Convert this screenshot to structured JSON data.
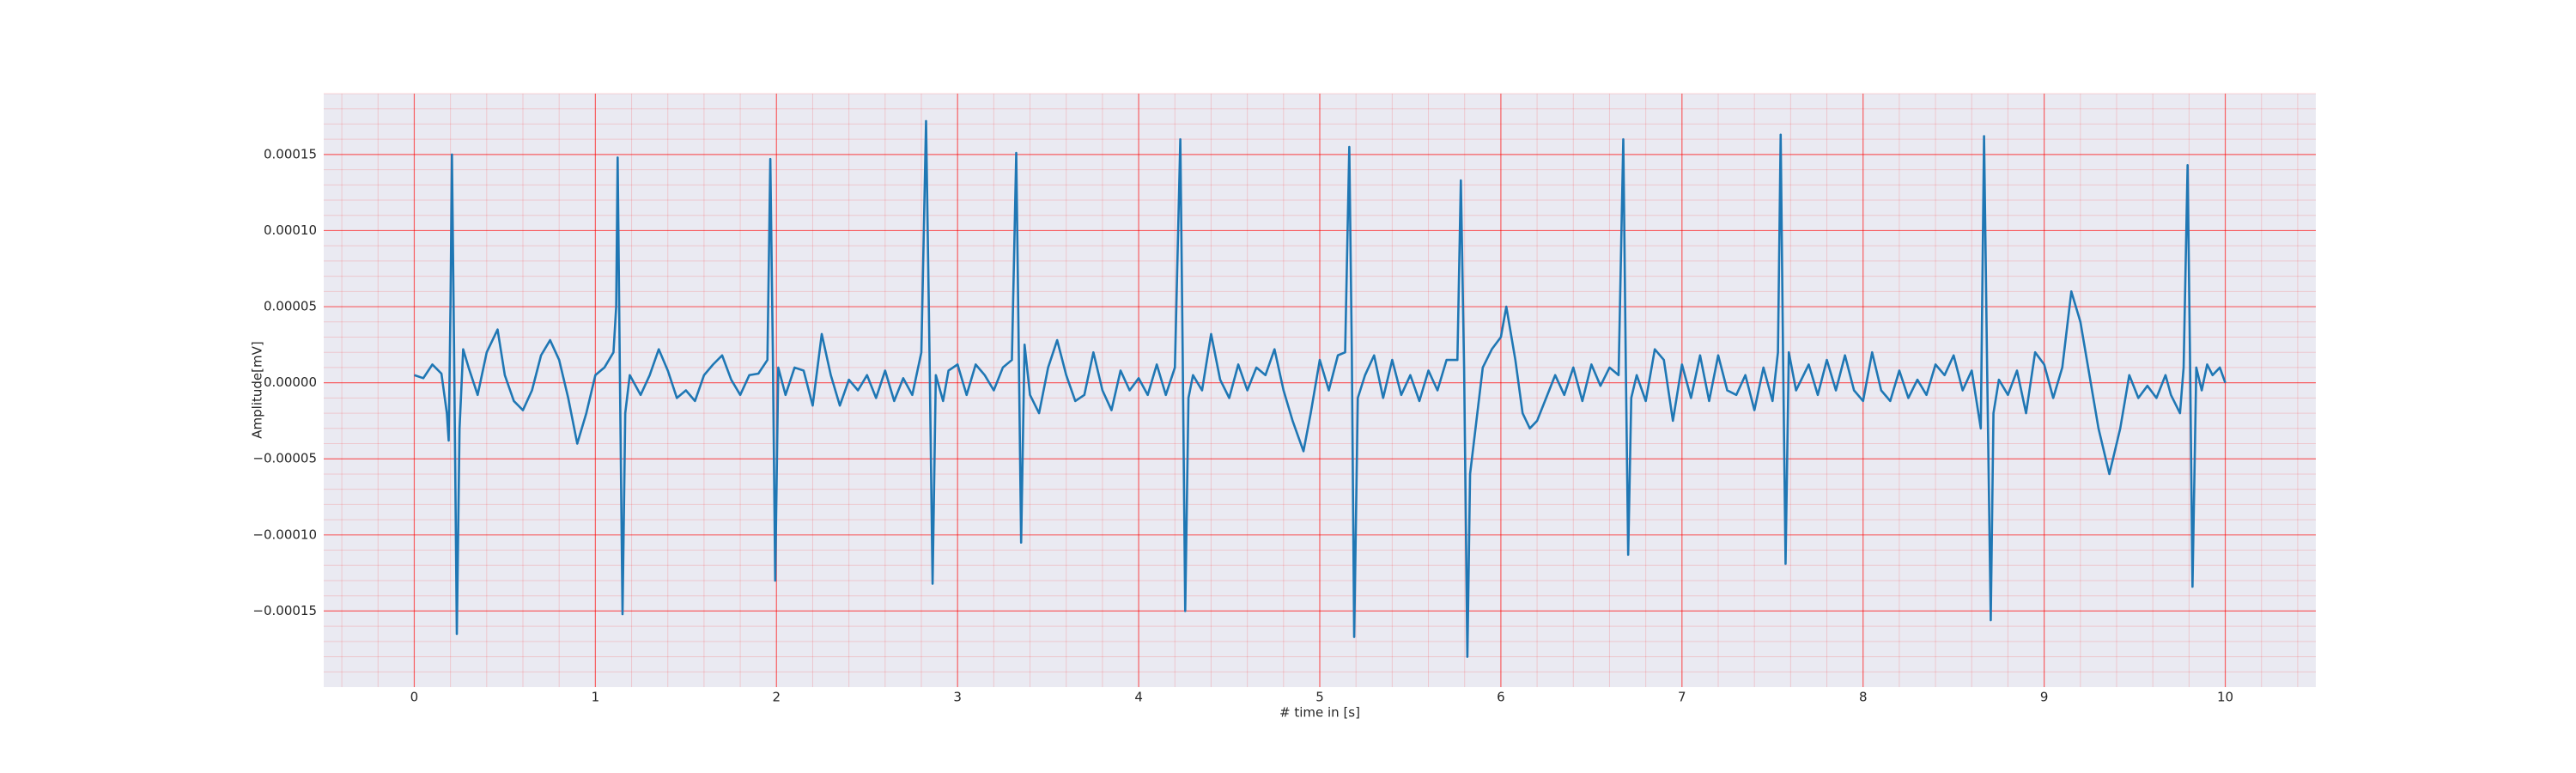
{
  "chart_data": {
    "type": "line",
    "x_label": "# time in [s]",
    "y_label": "Amplitude[mV]",
    "color": "#1f77b4",
    "background": "#eaeaf2",
    "grid": true,
    "grid_color": "#ff0000",
    "minor_grid": true,
    "xlim": [
      -0.5,
      10.5
    ],
    "ylim": [
      -0.0002,
      0.00019
    ],
    "xticks": [
      0,
      1,
      2,
      3,
      4,
      5,
      6,
      7,
      8,
      9,
      10
    ],
    "yticks": [
      {
        "value": -0.00015,
        "label": "−0.00015"
      },
      {
        "value": -0.0001,
        "label": "−0.00010"
      },
      {
        "value": -5e-05,
        "label": "−0.00005"
      },
      {
        "value": 0,
        "label": "0.00000"
      },
      {
        "value": 5e-05,
        "label": "0.00005"
      },
      {
        "value": 0.0001,
        "label": "0.00010"
      },
      {
        "value": 0.00015,
        "label": "0.00015"
      }
    ],
    "x": [
      0,
      0.05,
      0.1,
      0.15,
      0.18,
      0.19,
      0.2,
      0.208,
      0.22,
      0.235,
      0.25,
      0.27,
      0.3,
      0.35,
      0.4,
      0.46,
      0.5,
      0.55,
      0.6,
      0.65,
      0.7,
      0.75,
      0.8,
      0.85,
      0.9,
      0.95,
      1.0,
      1.05,
      1.1,
      1.115,
      1.123,
      1.135,
      1.15,
      1.165,
      1.19,
      1.25,
      1.3,
      1.35,
      1.4,
      1.45,
      1.5,
      1.55,
      1.6,
      1.65,
      1.7,
      1.75,
      1.8,
      1.85,
      1.9,
      1.95,
      1.966,
      1.98,
      1.993,
      2.01,
      2.05,
      2.1,
      2.15,
      2.2,
      2.25,
      2.3,
      2.35,
      2.4,
      2.45,
      2.5,
      2.55,
      2.6,
      2.65,
      2.7,
      2.75,
      2.8,
      2.826,
      2.845,
      2.862,
      2.88,
      2.92,
      2.95,
      3.0,
      3.05,
      3.1,
      3.15,
      3.2,
      3.25,
      3.3,
      3.324,
      3.338,
      3.351,
      3.37,
      3.4,
      3.45,
      3.5,
      3.55,
      3.6,
      3.65,
      3.7,
      3.75,
      3.8,
      3.85,
      3.9,
      3.95,
      4.0,
      4.05,
      4.1,
      4.15,
      4.2,
      4.23,
      4.243,
      4.257,
      4.275,
      4.3,
      4.35,
      4.4,
      4.45,
      4.5,
      4.55,
      4.6,
      4.65,
      4.7,
      4.75,
      4.8,
      4.85,
      4.91,
      4.95,
      5.0,
      5.05,
      5.1,
      5.14,
      5.163,
      5.177,
      5.19,
      5.21,
      5.25,
      5.3,
      5.35,
      5.4,
      5.45,
      5.5,
      5.55,
      5.6,
      5.65,
      5.7,
      5.76,
      5.779,
      5.797,
      5.815,
      5.83,
      5.85,
      5.9,
      5.95,
      6.0,
      6.03,
      6.08,
      6.12,
      6.16,
      6.2,
      6.25,
      6.3,
      6.35,
      6.4,
      6.45,
      6.5,
      6.55,
      6.6,
      6.65,
      6.676,
      6.69,
      6.703,
      6.72,
      6.75,
      6.8,
      6.85,
      6.9,
      6.95,
      7.0,
      7.05,
      7.1,
      7.15,
      7.2,
      7.25,
      7.3,
      7.35,
      7.4,
      7.45,
      7.5,
      7.53,
      7.545,
      7.558,
      7.572,
      7.59,
      7.63,
      7.7,
      7.75,
      7.8,
      7.85,
      7.9,
      7.95,
      8.0,
      8.05,
      8.1,
      8.15,
      8.2,
      8.25,
      8.3,
      8.35,
      8.4,
      8.45,
      8.5,
      8.55,
      8.6,
      8.65,
      8.668,
      8.685,
      8.705,
      8.72,
      8.75,
      8.8,
      8.85,
      8.9,
      8.95,
      9.0,
      9.05,
      9.1,
      9.15,
      9.2,
      9.25,
      9.3,
      9.36,
      9.42,
      9.47,
      9.52,
      9.57,
      9.62,
      9.67,
      9.7,
      9.75,
      9.77,
      9.792,
      9.806,
      9.819,
      9.84,
      9.87,
      9.9,
      9.93,
      9.97,
      10.0
    ],
    "values": [
      5e-06,
      3e-06,
      1.2e-05,
      6e-06,
      -2e-05,
      -3.8e-05,
      5e-05,
      0.00015,
      2e-05,
      -0.000165,
      -3e-05,
      2.2e-05,
      1e-05,
      -8e-06,
      2e-05,
      3.5e-05,
      5e-06,
      -1.2e-05,
      -1.8e-05,
      -5e-06,
      1.8e-05,
      2.8e-05,
      1.5e-05,
      -1e-05,
      -4e-05,
      -2e-05,
      5e-06,
      1e-05,
      2e-05,
      5e-05,
      0.000148,
      1e-05,
      -0.000152,
      -2e-05,
      5e-06,
      -8e-06,
      5e-06,
      2.2e-05,
      8e-06,
      -1e-05,
      -5e-06,
      -1.2e-05,
      5e-06,
      1.2e-05,
      1.8e-05,
      2e-06,
      -8e-06,
      5e-06,
      6e-06,
      1.5e-05,
      0.000147,
      2e-05,
      -0.00013,
      1e-05,
      -8e-06,
      1e-05,
      8e-06,
      -1.5e-05,
      3.2e-05,
      5e-06,
      -1.5e-05,
      2e-06,
      -5e-06,
      5e-06,
      -1e-05,
      8e-06,
      -1.2e-05,
      3e-06,
      -8e-06,
      2e-05,
      0.000172,
      2e-05,
      -0.000132,
      5e-06,
      -1.2e-05,
      8e-06,
      1.2e-05,
      -8e-06,
      1.2e-05,
      5e-06,
      -5e-06,
      1e-05,
      1.5e-05,
      0.000151,
      2e-05,
      -0.000105,
      2.5e-05,
      -8e-06,
      -2e-05,
      1e-05,
      2.8e-05,
      5e-06,
      -1.2e-05,
      -8e-06,
      2e-05,
      -5e-06,
      -1.8e-05,
      8e-06,
      -5e-06,
      3e-06,
      -8e-06,
      1.2e-05,
      -8e-06,
      1e-05,
      0.00016,
      2e-05,
      -0.00015,
      -1e-05,
      5e-06,
      -5e-06,
      3.2e-05,
      2e-06,
      -1e-05,
      1.2e-05,
      -5e-06,
      1e-05,
      5e-06,
      2.2e-05,
      -5e-06,
      -2.5e-05,
      -4.5e-05,
      -2e-05,
      1.5e-05,
      -5e-06,
      1.8e-05,
      2e-05,
      0.000155,
      2e-05,
      -0.000167,
      -1e-05,
      5e-06,
      1.8e-05,
      -1e-05,
      1.5e-05,
      -8e-06,
      5e-06,
      -1.2e-05,
      8e-06,
      -5e-06,
      1.5e-05,
      1.5e-05,
      0.000133,
      1e-05,
      -0.00018,
      -6e-05,
      -4e-05,
      1e-05,
      2.2e-05,
      3e-05,
      5e-05,
      1.5e-05,
      -2e-05,
      -3e-05,
      -2.5e-05,
      -1e-05,
      5e-06,
      -8e-06,
      1e-05,
      -1.2e-05,
      1.2e-05,
      -2e-06,
      1e-05,
      5e-06,
      0.00016,
      1e-05,
      -0.000113,
      -1e-05,
      5e-06,
      -1.2e-05,
      2.2e-05,
      1.5e-05,
      -2.5e-05,
      1.2e-05,
      -1e-05,
      1.8e-05,
      -1.2e-05,
      1.8e-05,
      -5e-06,
      -8e-06,
      5e-06,
      -1.8e-05,
      1e-05,
      -1.2e-05,
      2e-05,
      0.000163,
      2e-05,
      -0.000119,
      2e-05,
      -5e-06,
      1.2e-05,
      -8e-06,
      1.5e-05,
      -5e-06,
      1.8e-05,
      -5e-06,
      -1.2e-05,
      2e-05,
      -5e-06,
      -1.2e-05,
      8e-06,
      -1e-05,
      2e-06,
      -8e-06,
      1.2e-05,
      5e-06,
      1.8e-05,
      -5e-06,
      8e-06,
      -3e-05,
      0.000162,
      1e-05,
      -0.000156,
      -2e-05,
      2e-06,
      -8e-06,
      8e-06,
      -2e-05,
      2e-05,
      1.2e-05,
      -1e-05,
      1e-05,
      6e-05,
      4e-05,
      5e-06,
      -3e-05,
      -6e-05,
      -3e-05,
      5e-06,
      -1e-05,
      -2e-06,
      -1e-05,
      5e-06,
      -8e-06,
      -2e-05,
      1e-05,
      0.000143,
      1e-05,
      -0.000134,
      1e-05,
      -5e-06,
      1.2e-05,
      5e-06,
      1e-05,
      0
    ]
  }
}
